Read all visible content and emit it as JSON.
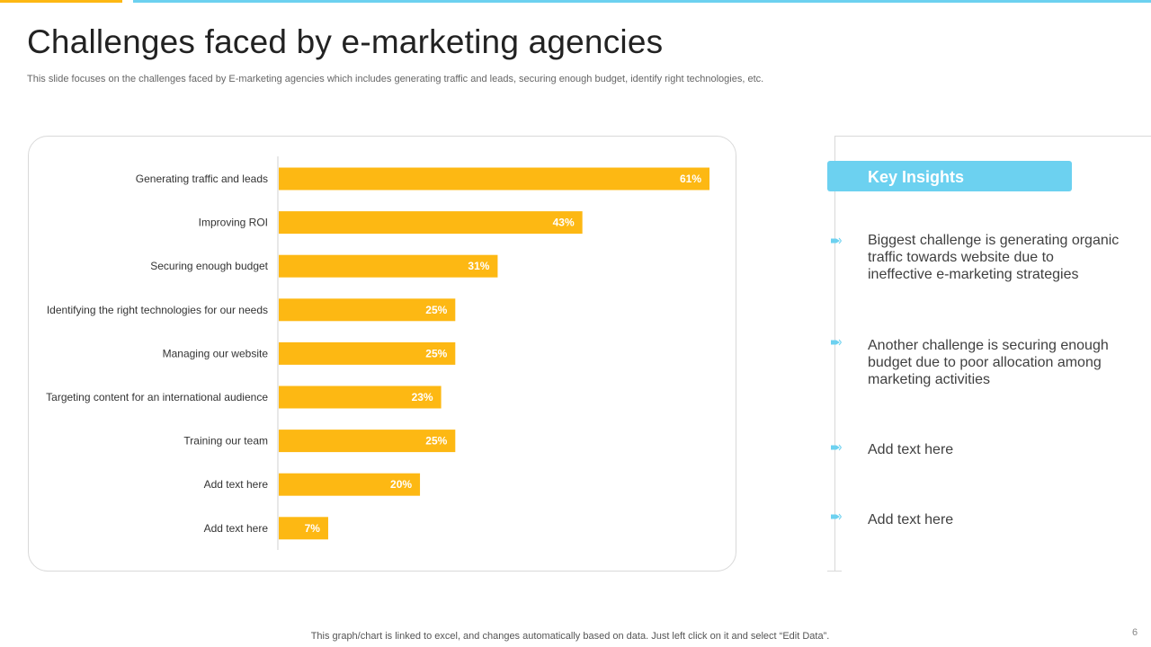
{
  "colors": {
    "accent_yellow": "#FDB813",
    "accent_blue": "#6CD1F0",
    "bar_color": "#FDB813",
    "bar_label_color": "#ffffff"
  },
  "slide": {
    "title": "Challenges faced by e-marketing agencies",
    "subtitle": "This slide focuses on the challenges faced by E-marketing agencies which includes generating traffic and leads, securing enough budget, identify right technologies, etc.",
    "footer_note": "This graph/chart is linked to excel,  and changes automatically based on data. Just left click on it and select “Edit Data”.",
    "page_number": "6"
  },
  "chart_data": {
    "type": "bar",
    "orientation": "horizontal",
    "title": "",
    "xlabel": "",
    "ylabel": "",
    "xlim": [
      0,
      61
    ],
    "grid": false,
    "categories": [
      "Generating traffic and leads",
      "Improving ROI",
      "Securing enough budget",
      "Identifying the right technologies for our needs",
      "Managing our website",
      "Targeting content for an international audience",
      "Training our team",
      "Add text here",
      "Add text here"
    ],
    "values": [
      61,
      43,
      31,
      25,
      25,
      23,
      25,
      20,
      7
    ],
    "value_labels": [
      "61%",
      "43%",
      "31%",
      "25%",
      "25%",
      "23%",
      "25%",
      "20%",
      "7%"
    ]
  },
  "insights": {
    "header": "Key Insights",
    "bullet_icon": "arrow-bullet-icon",
    "items": [
      "Biggest challenge is generating organic traffic towards website due to ineffective e-marketing strategies",
      "Another challenge is securing enough budget due to poor allocation among marketing activities",
      "Add text here",
      "Add text here"
    ]
  }
}
